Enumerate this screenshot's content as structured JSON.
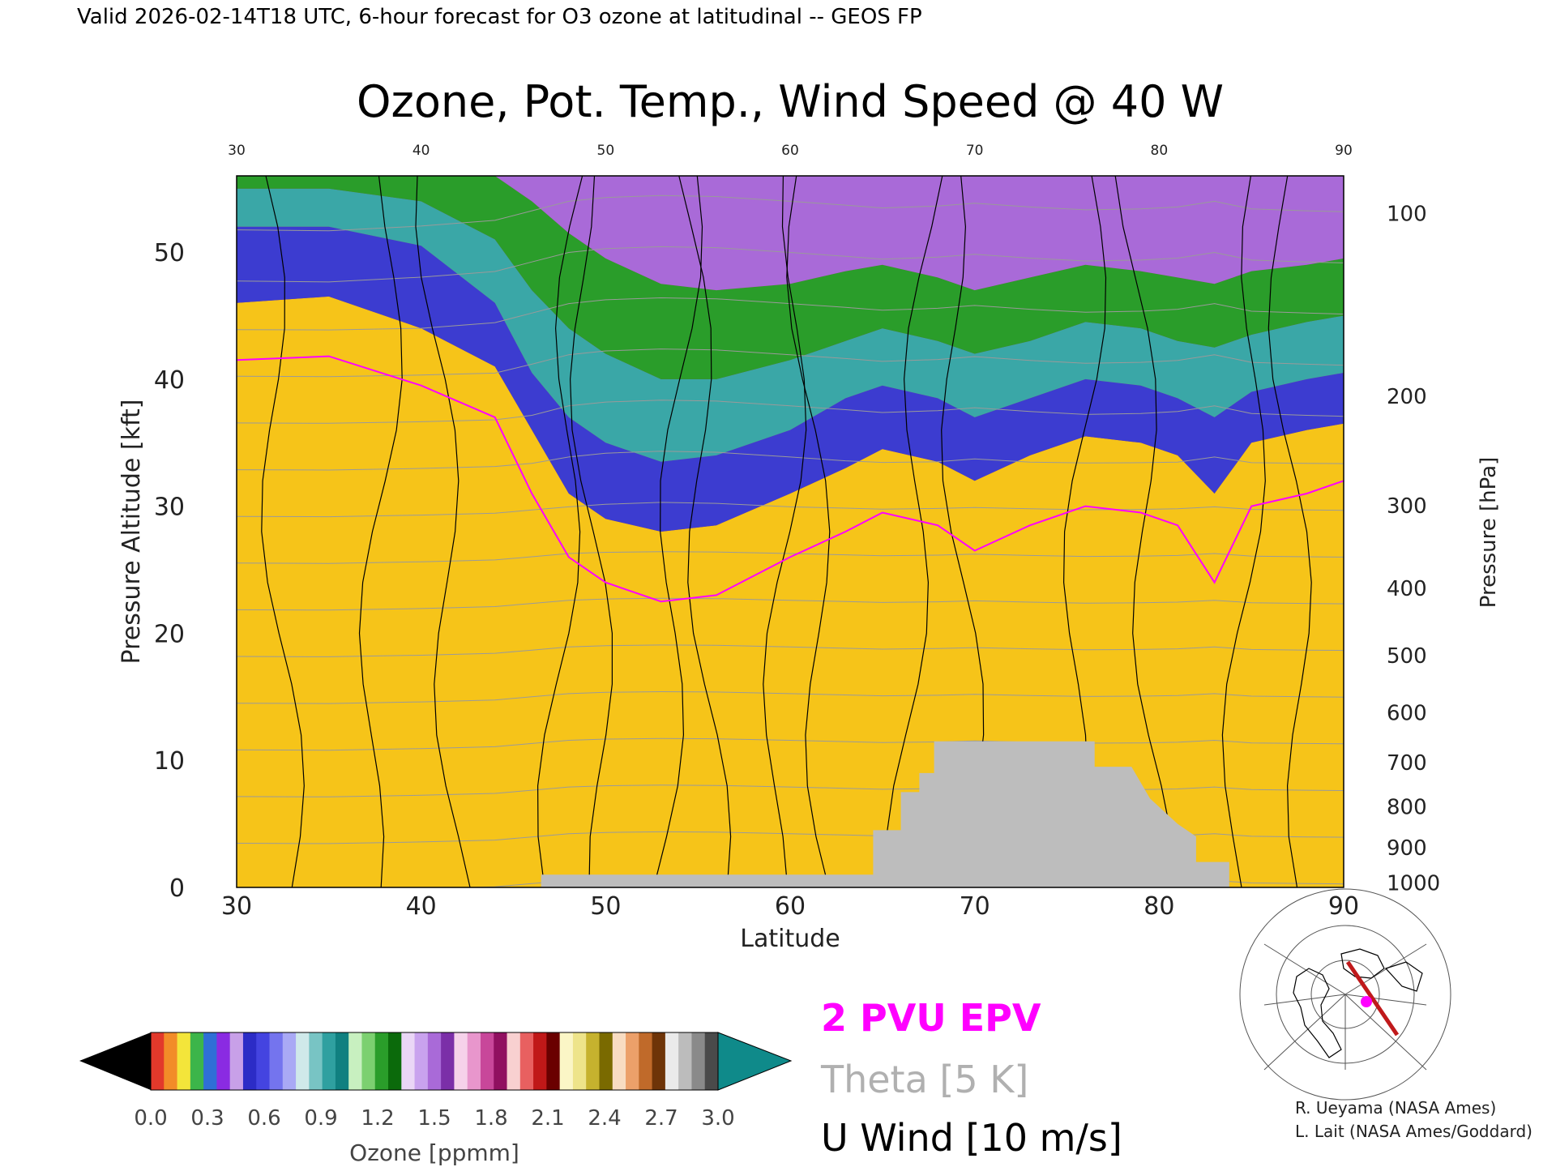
{
  "header": {
    "valid_line": "Valid 2026-02-14T18 UTC, 6-hour forecast for O3 ozone at latitudinal -- GEOS FP"
  },
  "chart_data": {
    "type": "heatmap",
    "title": "Ozone, Pot. Temp., Wind Speed @ 40 W",
    "xlabel": "Latitude",
    "ylabel_left": "Pressure Altitude [kft]",
    "ylabel_right": "Pressure [hPa]",
    "xlim": [
      30,
      90
    ],
    "ylim": [
      0,
      56
    ],
    "x_ticks": [
      "30",
      "40",
      "50",
      "60",
      "70",
      "80",
      "90"
    ],
    "y_ticks_left": [
      "0",
      "10",
      "20",
      "30",
      "40",
      "50"
    ],
    "y_ticks_right": [
      {
        "label": "100",
        "kft": 53.1
      },
      {
        "label": "200",
        "kft": 38.7
      },
      {
        "label": "300",
        "kft": 30.1
      },
      {
        "label": "400",
        "kft": 23.6
      },
      {
        "label": "500",
        "kft": 18.3
      },
      {
        "label": "600",
        "kft": 13.8
      },
      {
        "label": "700",
        "kft": 9.9
      },
      {
        "label": "800",
        "kft": 6.4
      },
      {
        "label": "900",
        "kft": 3.2
      },
      {
        "label": "1000",
        "kft": 0.4
      }
    ],
    "tropopause_kft": [
      [
        30,
        41.5
      ],
      [
        35,
        41.8
      ],
      [
        40,
        39.5
      ],
      [
        44,
        37
      ],
      [
        46,
        31
      ],
      [
        48,
        26
      ],
      [
        50,
        24
      ],
      [
        53,
        22.5
      ],
      [
        56,
        23
      ],
      [
        60,
        26
      ],
      [
        63,
        28
      ],
      [
        65,
        29.5
      ],
      [
        68,
        28.5
      ],
      [
        70,
        26.5
      ],
      [
        73,
        28.5
      ],
      [
        76,
        30
      ],
      [
        79,
        29.5
      ],
      [
        81,
        28.5
      ],
      [
        83,
        24
      ],
      [
        85,
        30
      ],
      [
        88,
        31
      ],
      [
        90,
        32
      ]
    ],
    "ozone_profile_breaks_kft": {
      "latitudes": [
        30,
        35,
        40,
        44,
        46,
        48,
        50,
        53,
        56,
        60,
        63,
        65,
        68,
        70,
        73,
        76,
        79,
        81,
        83,
        85,
        88,
        90
      ],
      "level_0_3_ppmm": [
        46,
        46.5,
        44,
        41,
        36,
        31,
        29,
        28,
        28.5,
        31,
        33,
        34.5,
        33.5,
        32,
        34,
        35.5,
        35,
        34,
        31,
        35,
        36,
        36.5
      ],
      "level_0_6_ppmm": [
        52,
        52,
        50.5,
        46,
        40.5,
        37,
        35,
        33.5,
        34,
        36,
        38.5,
        39.5,
        38.5,
        37,
        38.5,
        40,
        39.5,
        38.5,
        37,
        39,
        40,
        40.5
      ],
      "level_0_9_ppmm": [
        55,
        55,
        54,
        51,
        47,
        44,
        42,
        40,
        40,
        41.5,
        43,
        44,
        43,
        42,
        43,
        44.5,
        44,
        43,
        42.5,
        43.5,
        44.5,
        45
      ],
      "level_1_5_ppmm": [
        56,
        56,
        56,
        56,
        54,
        51.5,
        49.5,
        47.5,
        47,
        47.5,
        48.5,
        49,
        48,
        47,
        48,
        49,
        48.5,
        48,
        47.5,
        48.5,
        49,
        49.5
      ]
    },
    "surface_mask_kft": [
      [
        30,
        0
      ],
      [
        46.5,
        0
      ],
      [
        46.5,
        1
      ],
      [
        64.5,
        1
      ],
      [
        64.5,
        4.5
      ],
      [
        66,
        4.5
      ],
      [
        66,
        7.5
      ],
      [
        67,
        7.5
      ],
      [
        67,
        9
      ],
      [
        67.8,
        9
      ],
      [
        67.8,
        11.5
      ],
      [
        76.5,
        11.5
      ],
      [
        76.5,
        9.5
      ],
      [
        78.5,
        9.5
      ],
      [
        79.5,
        7
      ],
      [
        81,
        5
      ],
      [
        82,
        4
      ],
      [
        82,
        2
      ],
      [
        83.8,
        2
      ],
      [
        83.8,
        0
      ],
      [
        90,
        0
      ]
    ],
    "colorbar": {
      "label": "Ozone [ppmm]",
      "ticks": [
        "0.0",
        "0.3",
        "0.6",
        "0.9",
        "1.2",
        "1.5",
        "1.8",
        "2.1",
        "2.4",
        "2.7",
        "3.0"
      ],
      "colors": [
        "#e2392b",
        "#f28c28",
        "#f3e53a",
        "#3cb54a",
        "#2f6fd6",
        "#8a2be2",
        "#c8a0e8",
        "#2c2cc6",
        "#4444e0",
        "#7474ee",
        "#a9a9f5",
        "#cfe9ea",
        "#78c4c4",
        "#2fa0a0",
        "#108080",
        "#c8f0c0",
        "#7cd070",
        "#2a9d2a",
        "#0b6a0b",
        "#ead6f6",
        "#c9a2ee",
        "#a96ad8",
        "#7b2fa8",
        "#f6d2ea",
        "#e896cc",
        "#c8479a",
        "#901060",
        "#f8d0d0",
        "#e86060",
        "#c01818",
        "#6a0000",
        "#fbf6c6",
        "#eee48a",
        "#c6b22e",
        "#7a6a00",
        "#f8dcc2",
        "#eca06a",
        "#c06a2a",
        "#6e3408",
        "#eaeaea",
        "#bcbcbc",
        "#8a8a8a",
        "#4a4a4a"
      ],
      "under_color": "#000000",
      "over_color": "#0f8a8a"
    },
    "legend": [
      {
        "label": "2 PVU EPV",
        "color": "#ff00ff"
      },
      {
        "label": "Theta [5 K]",
        "color": "#b0b0b0"
      },
      {
        "label": "U Wind [10 m/s]",
        "color": "#000000"
      }
    ],
    "grid": false,
    "legend_placement": "bottom-right"
  },
  "credits": [
    "R. Ueyama (NASA Ames)",
    "L. Lait (NASA Ames/Goddard)"
  ],
  "colors": {
    "epv_line": "#ff00ff",
    "theta_line": "#9a9a9a",
    "wind_line": "#000000",
    "terrain": "#bdbdbd",
    "map_track": "#c0191b",
    "map_marker": "#ff00ff"
  },
  "map_inset": {
    "icon": "polar-stereographic-map-icon"
  }
}
